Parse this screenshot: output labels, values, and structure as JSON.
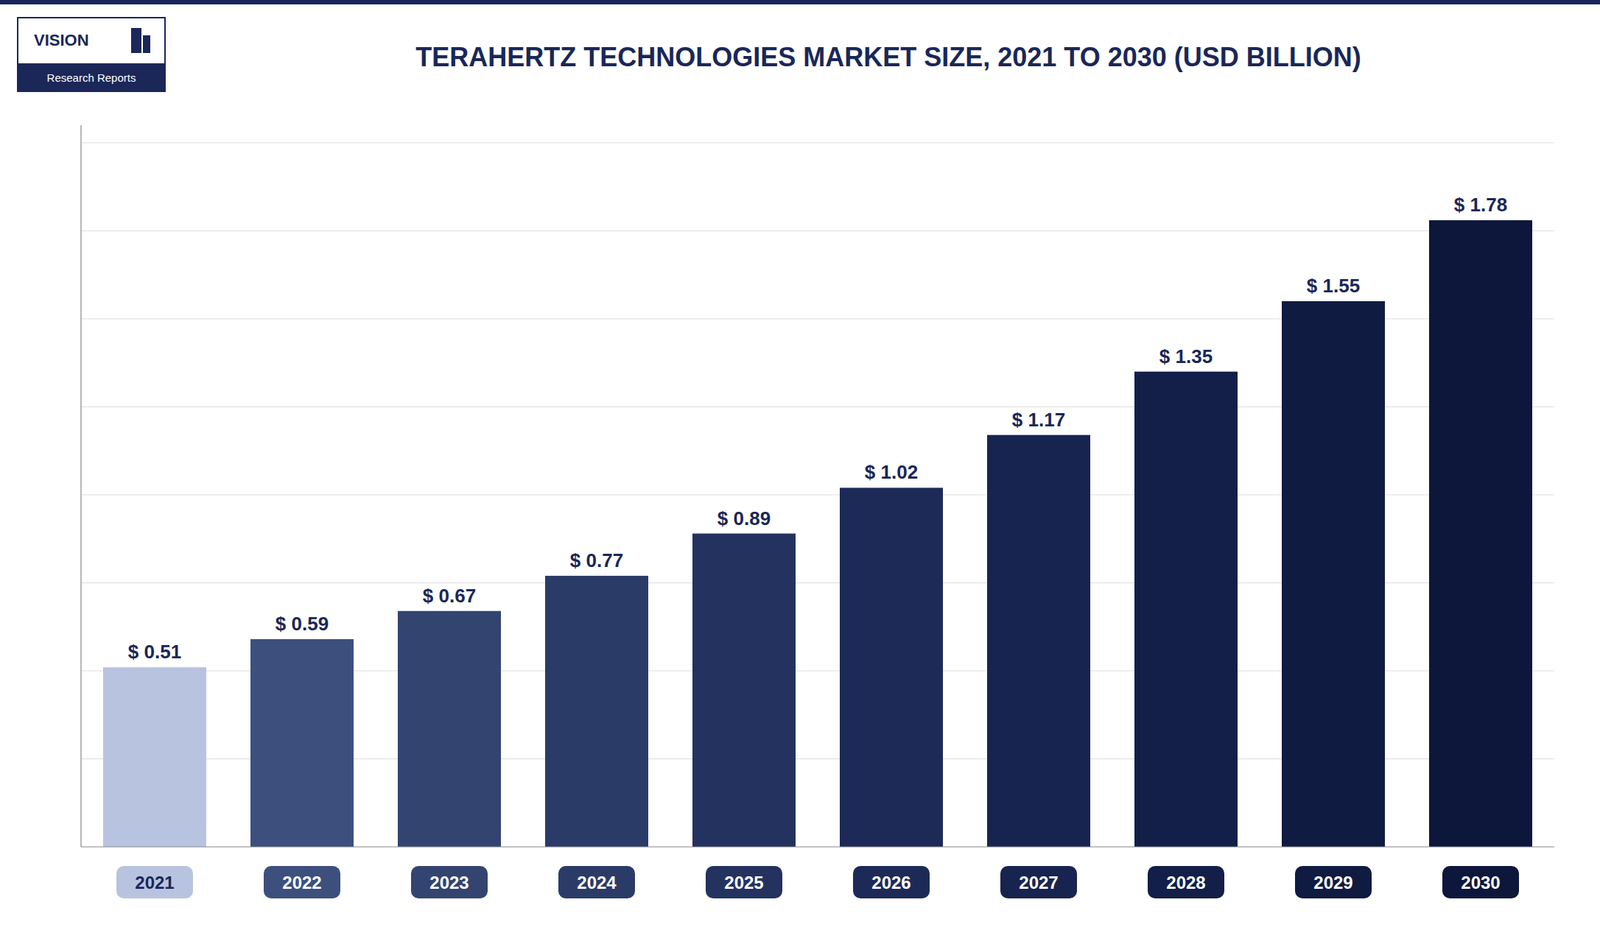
{
  "chart_data": {
    "type": "bar",
    "title": "TERAHERTZ TECHNOLOGIES MARKET SIZE, 2021 TO 2030 (USD BILLION)",
    "annotations": [
      "VISION",
      "Research Reports"
    ],
    "categories": [
      "2021",
      "2022",
      "2023",
      "2024",
      "2025",
      "2026",
      "2027",
      "2028",
      "2029",
      "2030"
    ],
    "values": [
      0.51,
      0.59,
      0.67,
      0.77,
      0.89,
      1.02,
      1.17,
      1.35,
      1.55,
      1.78
    ],
    "value_labels": [
      "$ 0.51",
      "$ 0.59",
      "$ 0.67",
      "$ 0.77",
      "$ 0.89",
      "$ 1.02",
      "$ 1.17",
      "$ 1.35",
      "$ 1.55",
      "$ 1.78"
    ],
    "colors": [
      "#b8c4df",
      "#3d4f7c",
      "#334470",
      "#2b3b68",
      "#243260",
      "#1d2a58",
      "#182450",
      "#131f48",
      "#101b42",
      "#0d173c"
    ],
    "ylim": [
      0,
      2.05
    ],
    "yticks": [
      0.25,
      0.5,
      0.75,
      1.0,
      1.25,
      1.5,
      1.75,
      2.0
    ],
    "grid": true,
    "data_labels": true,
    "tick_labels": "x"
  }
}
